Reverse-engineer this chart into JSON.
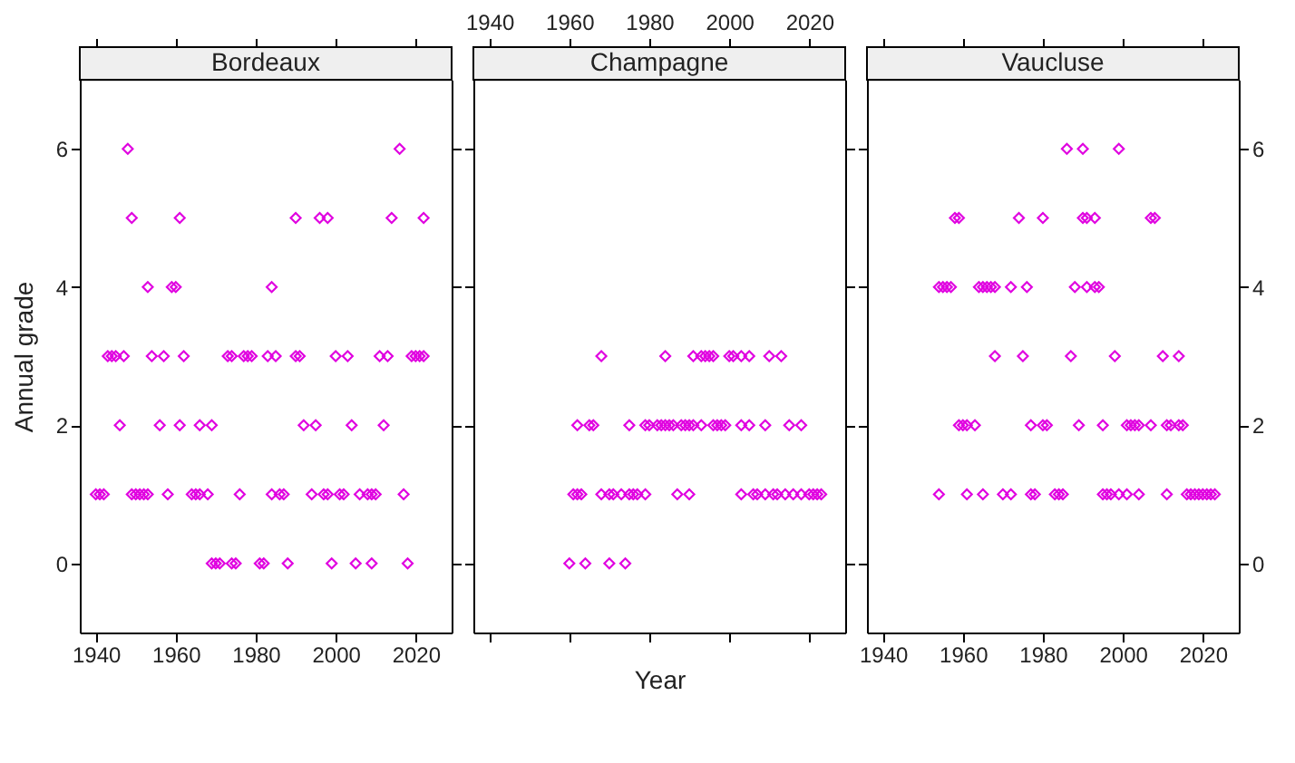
{
  "chart_data": [
    {
      "type": "scatter",
      "title": "Bordeaux",
      "ylabel": "Annual grade",
      "marker": "diamond",
      "grid": false,
      "legend": false,
      "xlim": [
        1936,
        2029
      ],
      "xticks": [
        1940,
        1960,
        1980,
        2000,
        2020
      ],
      "ylim": [
        -1,
        7
      ],
      "yticks": [
        0,
        2,
        4,
        6
      ],
      "series": [
        {
          "color": "#e000e0",
          "x": [
            1948,
            2016,
            1949,
            1961,
            1990,
            1996,
            1998,
            2014,
            2022,
            1953,
            1959,
            1960,
            1984,
            1943,
            1944,
            1945,
            1947,
            1954,
            1957,
            1962,
            1973,
            1974,
            1977,
            1978,
            1979,
            1983,
            1985,
            1990,
            1991,
            2000,
            2003,
            2011,
            2013,
            2019,
            2020,
            2021,
            2022,
            1946,
            1956,
            1961,
            1966,
            1969,
            1992,
            1995,
            2004,
            2012,
            1940,
            1941,
            1942,
            1949,
            1950,
            1951,
            1952,
            1953,
            1958,
            1964,
            1965,
            1966,
            1968,
            1976,
            1984,
            1986,
            1987,
            1994,
            1997,
            1998,
            2001,
            2002,
            2006,
            2008,
            2009,
            2010,
            2017,
            1969,
            1970,
            1971,
            1974,
            1975,
            1981,
            1982,
            1988,
            1999,
            2005,
            2009,
            2018
          ],
          "values": [
            6,
            6,
            5,
            5,
            5,
            5,
            5,
            5,
            5,
            4,
            4,
            4,
            4,
            3,
            3,
            3,
            3,
            3,
            3,
            3,
            3,
            3,
            3,
            3,
            3,
            3,
            3,
            3,
            3,
            3,
            3,
            3,
            3,
            3,
            3,
            3,
            3,
            2,
            2,
            2,
            2,
            2,
            2,
            2,
            2,
            2,
            1,
            1,
            1,
            1,
            1,
            1,
            1,
            1,
            1,
            1,
            1,
            1,
            1,
            1,
            1,
            1,
            1,
            1,
            1,
            1,
            1,
            1,
            1,
            1,
            1,
            1,
            1,
            0,
            0,
            0,
            0,
            0,
            0,
            0,
            0,
            0,
            0,
            0,
            0
          ]
        }
      ]
    },
    {
      "type": "scatter",
      "title": "Champagne",
      "xlabel": "Year",
      "marker": "diamond",
      "grid": false,
      "legend": false,
      "tick_labels": "x",
      "xlim": [
        1936,
        2029
      ],
      "xticks": [
        1940,
        1960,
        1980,
        2000,
        2020
      ],
      "ylim": [
        -1,
        7
      ],
      "yticks": [
        0,
        2,
        4,
        6
      ],
      "series": [
        {
          "color": "#e000e0",
          "x": [
            1968,
            1984,
            1991,
            1993,
            1994,
            1995,
            1996,
            2000,
            2001,
            2003,
            2005,
            2010,
            2013,
            1962,
            1965,
            1966,
            1975,
            1979,
            1980,
            1982,
            1983,
            1984,
            1985,
            1986,
            1988,
            1989,
            1990,
            1991,
            1993,
            1996,
            1997,
            1998,
            1999,
            2003,
            2005,
            2009,
            2015,
            2018,
            1961,
            1962,
            1963,
            1968,
            1970,
            1971,
            1973,
            1975,
            1976,
            1977,
            1979,
            1987,
            1990,
            2003,
            2006,
            2007,
            2009,
            2011,
            2012,
            2014,
            2016,
            2018,
            2020,
            2021,
            2022,
            2023,
            1960,
            1964,
            1970,
            1974
          ],
          "values": [
            3,
            3,
            3,
            3,
            3,
            3,
            3,
            3,
            3,
            3,
            3,
            3,
            3,
            2,
            2,
            2,
            2,
            2,
            2,
            2,
            2,
            2,
            2,
            2,
            2,
            2,
            2,
            2,
            2,
            2,
            2,
            2,
            2,
            2,
            2,
            2,
            2,
            2,
            1,
            1,
            1,
            1,
            1,
            1,
            1,
            1,
            1,
            1,
            1,
            1,
            1,
            1,
            1,
            1,
            1,
            1,
            1,
            1,
            1,
            1,
            1,
            1,
            1,
            1,
            0,
            0,
            0,
            0
          ]
        }
      ]
    },
    {
      "type": "scatter",
      "title": "Vaucluse",
      "marker": "diamond",
      "grid": false,
      "legend": false,
      "xlim": [
        1936,
        2029
      ],
      "xticks": [
        1940,
        1960,
        1980,
        2000,
        2020
      ],
      "y2lim": [
        -1,
        7
      ],
      "y2ticks": [
        0,
        2,
        4,
        6
      ],
      "series": [
        {
          "color": "#e000e0",
          "axis": "y2",
          "x": [
            1986,
            1990,
            1999,
            1958,
            1959,
            1974,
            1980,
            1990,
            1991,
            1993,
            2007,
            2008,
            1954,
            1955,
            1956,
            1957,
            1964,
            1965,
            1966,
            1967,
            1968,
            1972,
            1976,
            1988,
            1991,
            1993,
            1994,
            1968,
            1975,
            1987,
            1998,
            2010,
            2014,
            1959,
            1960,
            1961,
            1963,
            1977,
            1980,
            1981,
            1989,
            1995,
            2001,
            2002,
            2003,
            2004,
            2007,
            2011,
            2012,
            2014,
            2015,
            1954,
            1961,
            1965,
            1970,
            1972,
            1977,
            1978,
            1983,
            1984,
            1985,
            1995,
            1996,
            1997,
            1999,
            2001,
            2004,
            2011,
            2016,
            2017,
            2018,
            2019,
            2020,
            2021,
            2022,
            2023
          ],
          "values": [
            6,
            6,
            6,
            5,
            5,
            5,
            5,
            5,
            5,
            5,
            5,
            5,
            4,
            4,
            4,
            4,
            4,
            4,
            4,
            4,
            4,
            4,
            4,
            4,
            4,
            4,
            4,
            3,
            3,
            3,
            3,
            3,
            3,
            2,
            2,
            2,
            2,
            2,
            2,
            2,
            2,
            2,
            2,
            2,
            2,
            2,
            2,
            2,
            2,
            2,
            2,
            1,
            1,
            1,
            1,
            1,
            1,
            1,
            1,
            1,
            1,
            1,
            1,
            1,
            1,
            1,
            1,
            1,
            1,
            1,
            1,
            1,
            1,
            1,
            1,
            1
          ]
        }
      ]
    }
  ]
}
